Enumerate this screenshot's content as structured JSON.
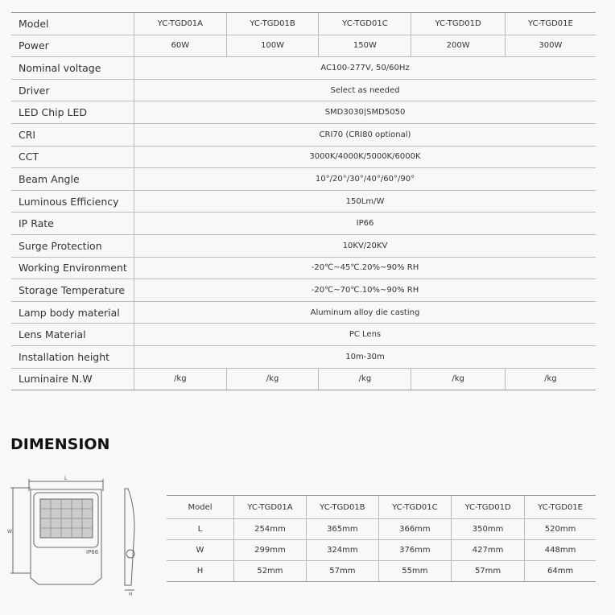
{
  "spec_table": {
    "rows": [
      {
        "label": "Model",
        "values": [
          "YC-TGD01A",
          "YC-TGD01B",
          "YC-TGD01C",
          "YC-TGD01D",
          "YC-TGD01E"
        ]
      },
      {
        "label": "Power",
        "values": [
          "60W",
          "100W",
          "150W",
          "200W",
          "300W"
        ]
      },
      {
        "label": "Nominal voltage",
        "value": "AC100-277V, 50/60Hz"
      },
      {
        "label": "Driver",
        "value": "Select as needed"
      },
      {
        "label": "LED Chip LED",
        "value": "SMD3030|SMD5050"
      },
      {
        "label": "CRI",
        "value": "CRI70 (CRI80 optional)"
      },
      {
        "label": "CCT",
        "value": "3000K/4000K/5000K/6000K"
      },
      {
        "label": "Beam Angle",
        "value": "10°/20°/30°/40°/60°/90°"
      },
      {
        "label": "Luminous Efficiency",
        "value": "150Lm/W"
      },
      {
        "label": "IP Rate",
        "value": "IP66"
      },
      {
        "label": "Surge Protection",
        "value": "10KV/20KV"
      },
      {
        "label": "Working Environment",
        "value": "-20℃~45℃.20%~90% RH"
      },
      {
        "label": "Storage Temperature",
        "value": "-20℃~70℃.10%~90% RH"
      },
      {
        "label": "Lamp body material",
        "value": "Aluminum alloy die casting"
      },
      {
        "label": "Lens Material",
        "value": "PC Lens"
      },
      {
        "label": "Installation height",
        "value": "10m-30m"
      },
      {
        "label": "Luminaire N.W",
        "values": [
          "/kg",
          "/kg",
          "/kg",
          "/kg",
          "/kg"
        ]
      }
    ]
  },
  "dimension": {
    "title": "DIMENSION",
    "drawing_labels": {
      "length": "L",
      "width": "W",
      "height": "H",
      "ip": "IP66"
    },
    "table": {
      "header": [
        "Model",
        "YC-TGD01A",
        "YC-TGD01B",
        "YC-TGD01C",
        "YC-TGD01D",
        "YC-TGD01E"
      ],
      "rows": [
        [
          "L",
          "254mm",
          "365mm",
          "366mm",
          "350mm",
          "520mm"
        ],
        [
          "W",
          "299mm",
          "324mm",
          "376mm",
          "427mm",
          "448mm"
        ],
        [
          "H",
          "52mm",
          "57mm",
          "55mm",
          "57mm",
          "64mm"
        ]
      ]
    }
  }
}
